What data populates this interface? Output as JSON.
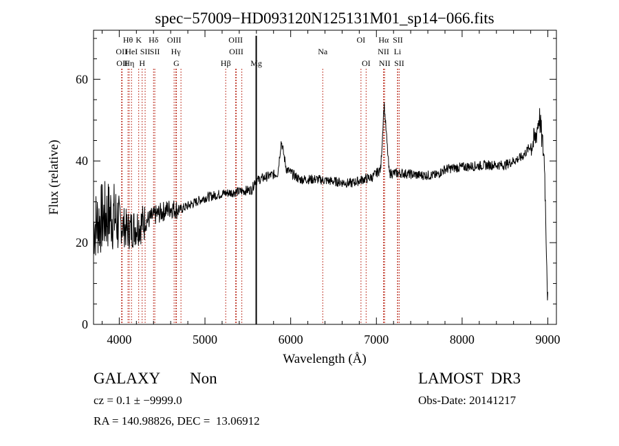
{
  "chart_data": {
    "type": "line",
    "title": "spec−57009−HD093120N125131M01_sp14−066.fits",
    "xlabel": "Wavelength (Å)",
    "ylabel": "Flux (relative)",
    "xlim": [
      3700,
      9100
    ],
    "ylim": [
      0,
      72
    ],
    "xticks": [
      4000,
      5000,
      6000,
      7000,
      8000,
      9000
    ],
    "yticks": [
      0,
      20,
      40,
      60
    ],
    "spectrum_anchors": {
      "x": [
        3700,
        3800,
        3900,
        4000,
        4100,
        4200,
        4300,
        4400,
        4500,
        4600,
        4700,
        4800,
        4900,
        5000,
        5200,
        5400,
        5550,
        5580,
        5700,
        5850,
        5890,
        5950,
        6100,
        6300,
        6500,
        6700,
        6850,
        6950,
        7050,
        7090,
        7150,
        7300,
        7500,
        7700,
        7800,
        8000,
        8300,
        8500,
        8700,
        8850,
        8900,
        8960,
        9000
      ],
      "y": [
        24,
        26,
        27,
        25,
        23,
        24,
        25,
        26.5,
        27.5,
        28.5,
        28,
        29,
        30,
        31,
        32,
        32.5,
        33,
        35,
        36,
        37,
        45,
        38,
        35.5,
        35.5,
        35,
        34.5,
        35.5,
        36,
        38,
        54,
        37,
        37,
        36.5,
        36.5,
        38,
        38.5,
        39,
        39,
        41,
        45,
        51,
        40,
        5
      ]
    },
    "line_markers": [
      {
        "w": 4027,
        "label": "OII",
        "row": 2
      },
      {
        "w": 4034,
        "label": "OII",
        "row": 3
      },
      {
        "w": 4102,
        "label": "Hθ",
        "row": 1
      },
      {
        "w": 4116,
        "label": "Hη",
        "row": 3
      },
      {
        "w": 4143,
        "label": "HeI",
        "row": 2
      },
      {
        "w": 4227,
        "label": "K",
        "row": 1
      },
      {
        "w": 4267,
        "label": "H",
        "row": 3
      },
      {
        "w": 4302,
        "label": "SII",
        "row": 2
      },
      {
        "w": 4400,
        "label": "Hδ",
        "row": 1
      },
      {
        "w": 4415,
        "label": "SII",
        "row": 2
      },
      {
        "w": 4640,
        "label": "OIII",
        "row": 1
      },
      {
        "w": 4660,
        "label": "Hγ",
        "row": 2
      },
      {
        "w": 4667,
        "label": "G",
        "row": 3
      },
      {
        "w": 4720,
        "label": "",
        "row": 0
      },
      {
        "w": 5242,
        "label": "Hβ",
        "row": 4
      },
      {
        "w": 5358,
        "label": "OIII",
        "row": 1
      },
      {
        "w": 5365,
        "label": "OIII",
        "row": 2
      },
      {
        "w": 5430,
        "label": "",
        "row": 0
      },
      {
        "w": 5598,
        "label": "Mg",
        "row": 4
      },
      {
        "w": 6374,
        "label": "Na",
        "row": 2
      },
      {
        "w": 6820,
        "label": "OI",
        "row": 1
      },
      {
        "w": 6880,
        "label": "OI",
        "row": 3
      },
      {
        "w": 7085,
        "label": "Hα",
        "row": 1
      },
      {
        "w": 7082,
        "label": "NII",
        "row": 2
      },
      {
        "w": 7096,
        "label": "NII",
        "row": 3
      },
      {
        "w": 7250,
        "label": "SII",
        "row": 1
      },
      {
        "w": 7246,
        "label": "Li",
        "row": 2
      },
      {
        "w": 7266,
        "label": "SII",
        "row": 3
      }
    ],
    "solid_lines": [
      5598
    ]
  },
  "info": {
    "class": "GALAXY",
    "subclass": "Non",
    "survey": "LAMOST  DR3",
    "cz": "cz = 0.1 ± −9999.0",
    "obs_date": "Obs-Date: 20141217",
    "radec": "RA = 140.98826, DEC =  13.06912"
  }
}
